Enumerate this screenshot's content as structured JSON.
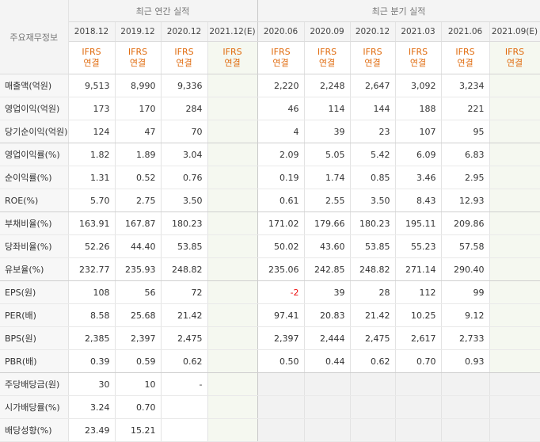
{
  "header": {
    "corner_label": "주요재무정보",
    "annual_title": "최근 연간 실적",
    "quarter_title": "최근 분기 실적",
    "annual_periods": [
      "2018.12",
      "2019.12",
      "2020.12",
      "2021.12(E)"
    ],
    "quarter_periods": [
      "2020.06",
      "2020.09",
      "2020.12",
      "2021.03",
      "2021.06",
      "2021.09(E)"
    ],
    "ifrs_top": "IFRS",
    "ifrs_bottom": "연결"
  },
  "rows": [
    {
      "label": "매출액(억원)",
      "annual": [
        "9,513",
        "8,990",
        "9,336",
        ""
      ],
      "quarter": [
        "2,220",
        "2,248",
        "2,647",
        "3,092",
        "3,234",
        ""
      ]
    },
    {
      "label": "영업이익(억원)",
      "annual": [
        "173",
        "170",
        "284",
        ""
      ],
      "quarter": [
        "46",
        "114",
        "144",
        "188",
        "221",
        ""
      ]
    },
    {
      "label": "당기순이익(억원)",
      "annual": [
        "124",
        "47",
        "70",
        ""
      ],
      "quarter": [
        "4",
        "39",
        "23",
        "107",
        "95",
        ""
      ]
    },
    {
      "label": "영업이익률(%)",
      "annual": [
        "1.82",
        "1.89",
        "3.04",
        ""
      ],
      "quarter": [
        "2.09",
        "5.05",
        "5.42",
        "6.09",
        "6.83",
        ""
      ]
    },
    {
      "label": "순이익률(%)",
      "annual": [
        "1.31",
        "0.52",
        "0.76",
        ""
      ],
      "quarter": [
        "0.19",
        "1.74",
        "0.85",
        "3.46",
        "2.95",
        ""
      ]
    },
    {
      "label": "ROE(%)",
      "annual": [
        "5.70",
        "2.75",
        "3.50",
        ""
      ],
      "quarter": [
        "0.61",
        "2.55",
        "3.50",
        "8.43",
        "12.93",
        ""
      ]
    },
    {
      "label": "부채비율(%)",
      "annual": [
        "163.91",
        "167.87",
        "180.23",
        ""
      ],
      "quarter": [
        "171.02",
        "179.66",
        "180.23",
        "195.11",
        "209.86",
        ""
      ]
    },
    {
      "label": "당좌비율(%)",
      "annual": [
        "52.26",
        "44.40",
        "53.85",
        ""
      ],
      "quarter": [
        "50.02",
        "43.60",
        "53.85",
        "55.23",
        "57.58",
        ""
      ]
    },
    {
      "label": "유보율(%)",
      "annual": [
        "232.77",
        "235.93",
        "248.82",
        ""
      ],
      "quarter": [
        "235.06",
        "242.85",
        "248.82",
        "271.14",
        "290.40",
        ""
      ]
    },
    {
      "label": "EPS(원)",
      "annual": [
        "108",
        "56",
        "72",
        ""
      ],
      "quarter": [
        "-2",
        "39",
        "28",
        "112",
        "99",
        ""
      ]
    },
    {
      "label": "PER(배)",
      "annual": [
        "8.58",
        "25.68",
        "21.42",
        ""
      ],
      "quarter": [
        "97.41",
        "20.83",
        "21.42",
        "10.25",
        "9.12",
        ""
      ]
    },
    {
      "label": "BPS(원)",
      "annual": [
        "2,385",
        "2,397",
        "2,475",
        ""
      ],
      "quarter": [
        "2,397",
        "2,444",
        "2,475",
        "2,617",
        "2,733",
        ""
      ]
    },
    {
      "label": "PBR(배)",
      "annual": [
        "0.39",
        "0.59",
        "0.62",
        ""
      ],
      "quarter": [
        "0.50",
        "0.44",
        "0.62",
        "0.70",
        "0.93",
        ""
      ]
    },
    {
      "label": "주당배당금(원)",
      "annual": [
        "30",
        "10",
        "-",
        ""
      ],
      "quarter": [
        "",
        "",
        "",
        "",
        "",
        ""
      ]
    },
    {
      "label": "시가배당률(%)",
      "annual": [
        "3.24",
        "0.70",
        "",
        ""
      ],
      "quarter": [
        "",
        "",
        "",
        "",
        "",
        ""
      ]
    },
    {
      "label": "배당성향(%)",
      "annual": [
        "23.49",
        "15.21",
        "",
        ""
      ],
      "quarter": [
        "",
        "",
        "",
        "",
        "",
        ""
      ]
    }
  ]
}
